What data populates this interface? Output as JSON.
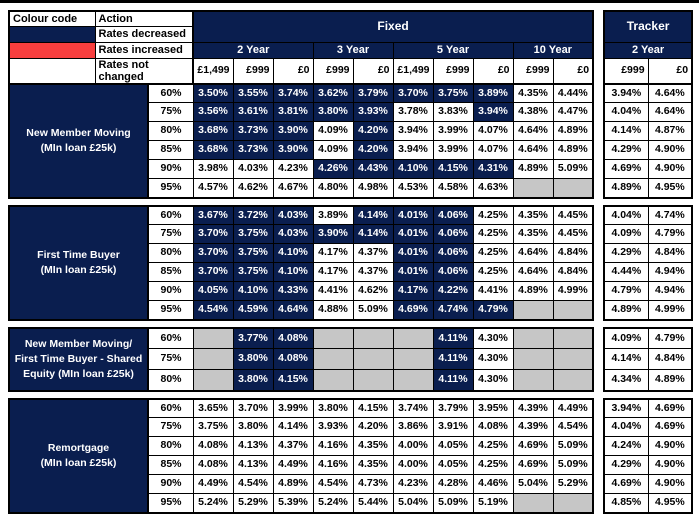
{
  "colors": {
    "navy_decreased": "#0a1e4f",
    "red_increased": "#f73e3e",
    "blank_grey": "#c6c6c6",
    "white_not_changed": "#ffffff"
  },
  "cell_state_legend": {
    "d": "Rates decreased",
    "n": "Rates not changed",
    "x": "blank (no product)"
  },
  "legend": {
    "colour_code_label": "Colour code",
    "action_label": "Action",
    "items": [
      {
        "label": "Rates decreased",
        "swatch": "navy"
      },
      {
        "label": "Rates increased",
        "swatch": "red"
      },
      {
        "label": "Rates not changed",
        "swatch": "white"
      }
    ]
  },
  "header": {
    "fixed_label": "Fixed",
    "tracker_label": "Tracker",
    "fixed_terms": [
      {
        "label": "2 Year",
        "fees": [
          "£1,499",
          "£999",
          "£0"
        ]
      },
      {
        "label": "3 Year",
        "fees": [
          "£999",
          "£0"
        ]
      },
      {
        "label": "5 Year",
        "fees": [
          "£1,499",
          "£999",
          "£0"
        ]
      },
      {
        "label": "10 Year",
        "fees": [
          "£999",
          "£0"
        ]
      }
    ],
    "tracker_term": {
      "label": "2 Year",
      "fees": [
        "£999",
        "£0"
      ]
    }
  },
  "sections": [
    {
      "label_lines": [
        "New Member Moving",
        "(MIn loan £25k)"
      ],
      "rows": [
        {
          "ltv": "60%",
          "fixed": [
            "3.50%",
            "3.55%",
            "3.74%",
            "3.62%",
            "3.79%",
            "3.70%",
            "3.75%",
            "3.89%",
            "4.35%",
            "4.44%"
          ],
          "fixed_states": "ddddddddnn",
          "tracker": [
            "3.94%",
            "4.64%"
          ],
          "tracker_states": "nn"
        },
        {
          "ltv": "75%",
          "fixed": [
            "3.56%",
            "3.61%",
            "3.81%",
            "3.80%",
            "3.93%",
            "3.78%",
            "3.83%",
            "3.94%",
            "4.38%",
            "4.47%"
          ],
          "fixed_states": "dddddnndnn",
          "tracker": [
            "4.04%",
            "4.64%"
          ],
          "tracker_states": "nn"
        },
        {
          "ltv": "80%",
          "fixed": [
            "3.68%",
            "3.73%",
            "3.90%",
            "4.09%",
            "4.20%",
            "3.94%",
            "3.99%",
            "4.07%",
            "4.64%",
            "4.89%"
          ],
          "fixed_states": "dddndnnnnn",
          "tracker": [
            "4.14%",
            "4.87%"
          ],
          "tracker_states": "nn"
        },
        {
          "ltv": "85%",
          "fixed": [
            "3.68%",
            "3.73%",
            "3.90%",
            "4.09%",
            "4.20%",
            "3.94%",
            "3.99%",
            "4.07%",
            "4.64%",
            "4.89%"
          ],
          "fixed_states": "dddndnnnnn",
          "tracker": [
            "4.29%",
            "4.90%"
          ],
          "tracker_states": "nn"
        },
        {
          "ltv": "90%",
          "fixed": [
            "3.98%",
            "4.03%",
            "4.23%",
            "4.26%",
            "4.43%",
            "4.10%",
            "4.15%",
            "4.31%",
            "4.89%",
            "5.09%"
          ],
          "fixed_states": "nnndddddnn",
          "tracker": [
            "4.69%",
            "4.90%"
          ],
          "tracker_states": "nn"
        },
        {
          "ltv": "95%",
          "fixed": [
            "4.57%",
            "4.62%",
            "4.67%",
            "4.80%",
            "4.98%",
            "4.53%",
            "4.58%",
            "4.63%",
            "",
            ""
          ],
          "fixed_states": "nnnnnnnnxx",
          "tracker": [
            "4.89%",
            "4.95%"
          ],
          "tracker_states": "nn"
        }
      ]
    },
    {
      "label_lines": [
        "First Time Buyer",
        "(MIn loan £25k)"
      ],
      "rows": [
        {
          "ltv": "60%",
          "fixed": [
            "3.67%",
            "3.72%",
            "4.03%",
            "3.89%",
            "4.14%",
            "4.01%",
            "4.06%",
            "4.25%",
            "4.35%",
            "4.45%"
          ],
          "fixed_states": "dddndddnnn",
          "tracker": [
            "4.04%",
            "4.74%"
          ],
          "tracker_states": "nn"
        },
        {
          "ltv": "75%",
          "fixed": [
            "3.70%",
            "3.75%",
            "4.03%",
            "3.90%",
            "4.14%",
            "4.01%",
            "4.06%",
            "4.25%",
            "4.35%",
            "4.45%"
          ],
          "fixed_states": "dddddddnnn",
          "tracker": [
            "4.09%",
            "4.79%"
          ],
          "tracker_states": "nn"
        },
        {
          "ltv": "80%",
          "fixed": [
            "3.70%",
            "3.75%",
            "4.10%",
            "4.17%",
            "4.37%",
            "4.01%",
            "4.06%",
            "4.25%",
            "4.64%",
            "4.84%"
          ],
          "fixed_states": "dddnnddnnn",
          "tracker": [
            "4.29%",
            "4.84%"
          ],
          "tracker_states": "nn"
        },
        {
          "ltv": "85%",
          "fixed": [
            "3.70%",
            "3.75%",
            "4.10%",
            "4.17%",
            "4.37%",
            "4.01%",
            "4.06%",
            "4.25%",
            "4.64%",
            "4.84%"
          ],
          "fixed_states": "dddnnddnnn",
          "tracker": [
            "4.44%",
            "4.94%"
          ],
          "tracker_states": "nn"
        },
        {
          "ltv": "90%",
          "fixed": [
            "4.05%",
            "4.10%",
            "4.33%",
            "4.41%",
            "4.62%",
            "4.17%",
            "4.22%",
            "4.41%",
            "4.89%",
            "4.99%"
          ],
          "fixed_states": "dddnnddnnn",
          "tracker": [
            "4.79%",
            "4.94%"
          ],
          "tracker_states": "nn"
        },
        {
          "ltv": "95%",
          "fixed": [
            "4.54%",
            "4.59%",
            "4.64%",
            "4.88%",
            "5.09%",
            "4.69%",
            "4.74%",
            "4.79%",
            "",
            ""
          ],
          "fixed_states": "dddnndddxx",
          "tracker": [
            "4.89%",
            "4.99%"
          ],
          "tracker_states": "nn"
        }
      ]
    },
    {
      "label_lines": [
        "New Member Moving/",
        "First Time Buyer - Shared",
        "Equity (MIn loan £25k)"
      ],
      "rows": [
        {
          "ltv": "60%",
          "fixed": [
            "",
            "3.77%",
            "4.08%",
            "",
            "",
            "",
            "4.11%",
            "4.30%",
            "",
            ""
          ],
          "fixed_states": "xddxxxdnxx",
          "tracker": [
            "4.09%",
            "4.79%"
          ],
          "tracker_states": "nn"
        },
        {
          "ltv": "75%",
          "fixed": [
            "",
            "3.80%",
            "4.08%",
            "",
            "",
            "",
            "4.11%",
            "4.30%",
            "",
            ""
          ],
          "fixed_states": "xddxxxdnxx",
          "tracker": [
            "4.14%",
            "4.84%"
          ],
          "tracker_states": "nn"
        },
        {
          "ltv": "80%",
          "fixed": [
            "",
            "3.80%",
            "4.15%",
            "",
            "",
            "",
            "4.11%",
            "4.30%",
            "",
            ""
          ],
          "fixed_states": "xddxxxdnxx",
          "tracker": [
            "4.34%",
            "4.89%"
          ],
          "tracker_states": "nn"
        }
      ]
    },
    {
      "label_lines": [
        "Remortgage",
        "(MIn loan £25k)"
      ],
      "rows": [
        {
          "ltv": "60%",
          "fixed": [
            "3.65%",
            "3.70%",
            "3.99%",
            "3.80%",
            "4.15%",
            "3.74%",
            "3.79%",
            "3.95%",
            "4.39%",
            "4.49%"
          ],
          "fixed_states": "nnnnnnnnnn",
          "tracker": [
            "3.94%",
            "4.69%"
          ],
          "tracker_states": "nn"
        },
        {
          "ltv": "75%",
          "fixed": [
            "3.75%",
            "3.80%",
            "4.14%",
            "3.93%",
            "4.20%",
            "3.86%",
            "3.91%",
            "4.08%",
            "4.39%",
            "4.54%"
          ],
          "fixed_states": "nnnnnnnnnn",
          "tracker": [
            "4.04%",
            "4.69%"
          ],
          "tracker_states": "nn"
        },
        {
          "ltv": "80%",
          "fixed": [
            "4.08%",
            "4.13%",
            "4.37%",
            "4.16%",
            "4.35%",
            "4.00%",
            "4.05%",
            "4.25%",
            "4.69%",
            "5.09%"
          ],
          "fixed_states": "nnnnnnnnnn",
          "tracker": [
            "4.24%",
            "4.90%"
          ],
          "tracker_states": "nn"
        },
        {
          "ltv": "85%",
          "fixed": [
            "4.08%",
            "4.13%",
            "4.49%",
            "4.16%",
            "4.35%",
            "4.00%",
            "4.05%",
            "4.25%",
            "4.69%",
            "5.09%"
          ],
          "fixed_states": "nnnnnnnnnn",
          "tracker": [
            "4.29%",
            "4.90%"
          ],
          "tracker_states": "nn"
        },
        {
          "ltv": "90%",
          "fixed": [
            "4.49%",
            "4.54%",
            "4.89%",
            "4.54%",
            "4.73%",
            "4.23%",
            "4.28%",
            "4.46%",
            "5.04%",
            "5.29%"
          ],
          "fixed_states": "nnnnnnnnnn",
          "tracker": [
            "4.69%",
            "4.90%"
          ],
          "tracker_states": "nn"
        },
        {
          "ltv": "95%",
          "fixed": [
            "5.24%",
            "5.29%",
            "5.39%",
            "5.24%",
            "5.44%",
            "5.04%",
            "5.09%",
            "5.19%",
            "",
            ""
          ],
          "fixed_states": "nnnnnnnnxx",
          "tracker": [
            "4.85%",
            "4.95%"
          ],
          "tracker_states": "nn"
        }
      ]
    }
  ]
}
